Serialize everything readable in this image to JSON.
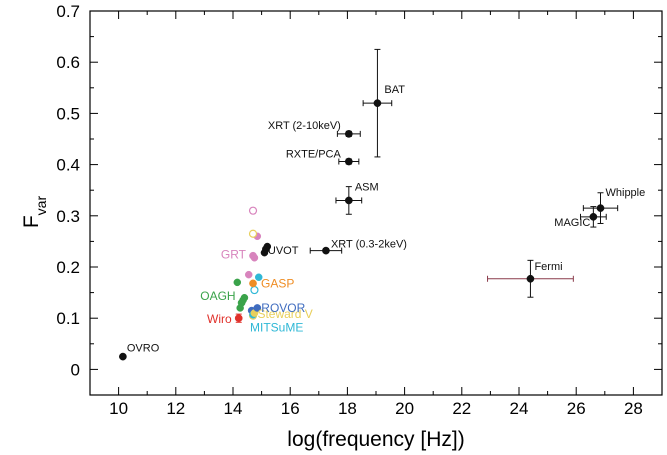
{
  "chart_data": {
    "type": "scatter",
    "title": "",
    "xlabel": "log(frequency [Hz])",
    "ylabel_main": "F",
    "ylabel_sub": "var",
    "xlim": [
      9,
      29
    ],
    "ylim": [
      -0.05,
      0.7
    ],
    "x_ticks": [
      10,
      12,
      14,
      16,
      18,
      20,
      22,
      24,
      26,
      28
    ],
    "y_ticks": [
      0,
      0.1,
      0.2,
      0.3,
      0.4,
      0.5,
      0.6,
      0.7
    ],
    "y_tick_labels": [
      "0",
      "0.1",
      "0.2",
      "0.3",
      "0.4",
      "0.5",
      "0.6",
      "0.7"
    ],
    "grid": false,
    "labeled_points": [
      {
        "label": "OVRO",
        "x": 10.15,
        "y": 0.025,
        "xerr": 0,
        "yerr": 0,
        "color": "#111111",
        "label_color": "#111111"
      },
      {
        "label": "Wiro",
        "x": 14.2,
        "y": 0.1,
        "xerr": 0,
        "yerr": 0.008,
        "color": "#e0312b",
        "label_color": "#e0312b"
      },
      {
        "label": "MITSuME",
        "x": 14.7,
        "y": 0.107,
        "xerr": 0,
        "yerr": 0,
        "color": "#2fb8d6",
        "label_color": "#2fb8d6"
      },
      {
        "label": "Steward V",
        "x": 14.75,
        "y": 0.11,
        "xerr": 0,
        "yerr": 0,
        "color": "#e8cf5a",
        "label_color": "#e8cf5a"
      },
      {
        "label": "ROVOR",
        "x": 14.85,
        "y": 0.12,
        "xerr": 0,
        "yerr": 0,
        "color": "#3f6cbf",
        "label_color": "#3f6cbf"
      },
      {
        "label": "OAGH",
        "x": 14.3,
        "y": 0.13,
        "xerr": 0,
        "yerr": 0,
        "color": "#3aa34a",
        "label_color": "#3aa34a"
      },
      {
        "label": "GASP",
        "x": 14.7,
        "y": 0.168,
        "xerr": 0,
        "yerr": 0,
        "color": "#ef8d24",
        "label_color": "#ef8d24"
      },
      {
        "label": "GRT",
        "x": 14.7,
        "y": 0.222,
        "xerr": 0,
        "yerr": 0,
        "color": "#d884bd",
        "label_color": "#d884bd"
      },
      {
        "label": "UVOT",
        "x": 15.15,
        "y": 0.235,
        "xerr": 0,
        "yerr": 0,
        "color": "#111111",
        "label_color": "#111111"
      },
      {
        "label": "XRT (0.3-2keV)",
        "x": 17.25,
        "y": 0.232,
        "xerr": 0.55,
        "yerr": 0.004,
        "color": "#111111",
        "label_color": "#111111"
      },
      {
        "label": "ASM",
        "x": 18.05,
        "y": 0.33,
        "xerr": 0.45,
        "yerr": 0.027,
        "color": "#111111",
        "label_color": "#111111"
      },
      {
        "label": "RXTE/PCA",
        "x": 18.05,
        "y": 0.406,
        "xerr": 0.35,
        "yerr": 0.005,
        "color": "#111111",
        "label_color": "#111111"
      },
      {
        "label": "XRT (2-10keV)",
        "x": 18.05,
        "y": 0.46,
        "xerr": 0.4,
        "yerr": 0.005,
        "color": "#111111",
        "label_color": "#111111"
      },
      {
        "label": "BAT",
        "x": 19.05,
        "y": 0.52,
        "xerr": 0.5,
        "yerr": 0.105,
        "color": "#111111",
        "label_color": "#111111"
      },
      {
        "label": "Fermi",
        "x": 24.4,
        "y": 0.177,
        "xerr": 1.5,
        "yerr": 0.036,
        "color": "#111111",
        "label_color": "#111111"
      },
      {
        "label": "MAGIC",
        "x": 26.6,
        "y": 0.298,
        "xerr": 0.45,
        "yerr": 0.02,
        "color": "#111111",
        "label_color": "#111111"
      },
      {
        "label": "Whipple",
        "x": 26.85,
        "y": 0.315,
        "xerr": 0.6,
        "yerr": 0.03,
        "color": "#111111",
        "label_color": "#111111"
      }
    ],
    "extra_points": [
      {
        "x": 14.15,
        "y": 0.17,
        "color": "#3aa34a",
        "hollow": false
      },
      {
        "x": 14.4,
        "y": 0.14,
        "color": "#3aa34a",
        "hollow": false
      },
      {
        "x": 14.35,
        "y": 0.135,
        "color": "#3aa34a",
        "hollow": false
      },
      {
        "x": 14.25,
        "y": 0.12,
        "color": "#3aa34a",
        "hollow": false
      },
      {
        "x": 14.55,
        "y": 0.185,
        "color": "#d884bd",
        "hollow": false
      },
      {
        "x": 14.75,
        "y": 0.218,
        "color": "#d884bd",
        "hollow": false
      },
      {
        "x": 14.85,
        "y": 0.26,
        "color": "#d884bd",
        "hollow": false
      },
      {
        "x": 14.7,
        "y": 0.31,
        "color": "#d884bd",
        "hollow": true
      },
      {
        "x": 14.7,
        "y": 0.265,
        "color": "#e8cf5a",
        "hollow": true
      },
      {
        "x": 14.9,
        "y": 0.18,
        "color": "#2fb8d6",
        "hollow": false
      },
      {
        "x": 14.75,
        "y": 0.155,
        "color": "#2fb8d6",
        "hollow": true
      },
      {
        "x": 14.65,
        "y": 0.115,
        "color": "#3f6cbf",
        "hollow": false
      },
      {
        "x": 14.7,
        "y": 0.105,
        "color": "#e8cf5a",
        "hollow": true
      },
      {
        "x": 15.2,
        "y": 0.24,
        "color": "#111111",
        "hollow": false
      },
      {
        "x": 15.1,
        "y": 0.228,
        "color": "#111111",
        "hollow": false
      }
    ]
  }
}
